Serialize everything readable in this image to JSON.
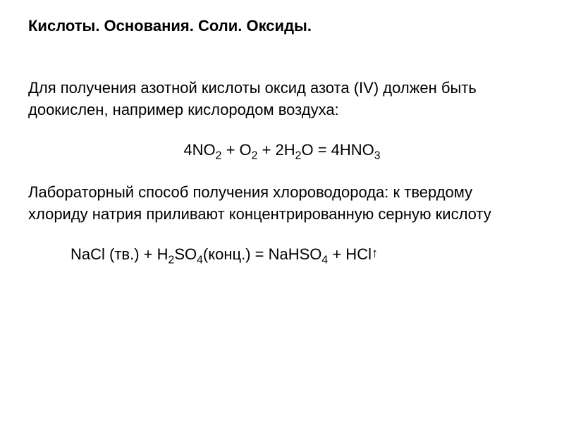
{
  "title": "Кислоты. Основания. Соли. Оксиды.",
  "paragraph1": "Для получения азотной кислоты оксид азота (IV) должен быть доокислен, например кислородом воздуха:",
  "equation1": {
    "parts": [
      "4NO",
      "2",
      " + O",
      "2",
      " + 2H",
      "2",
      "O = 4HNO",
      "3"
    ]
  },
  "paragraph2": "Лабораторный способ получения хлороводорода: к твердому хлориду натрия приливают концентрированную серную кислоту",
  "equation2": {
    "parts": [
      "NaCl (тв.) + H",
      "2",
      "SO",
      "4",
      "(конц.) = NaHSO",
      "4",
      " + HCl"
    ],
    "arrow": "↑"
  },
  "styling": {
    "background_color": "#ffffff",
    "text_color": "#000000",
    "font_family": "Arial",
    "title_fontsize": 22,
    "title_fontweight": "bold",
    "body_fontsize": 22,
    "line_height": 1.4,
    "subscript_scale": 0.72
  }
}
